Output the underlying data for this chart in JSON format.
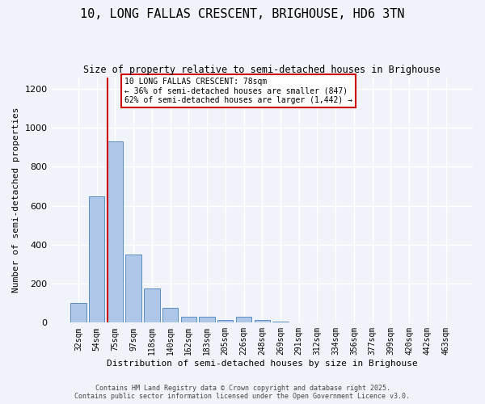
{
  "title_line1": "10, LONG FALLAS CRESCENT, BRIGHOUSE, HD6 3TN",
  "title_line2": "Size of property relative to semi-detached houses in Brighouse",
  "xlabel": "Distribution of semi-detached houses by size in Brighouse",
  "ylabel": "Number of semi-detached properties",
  "categories": [
    "32sqm",
    "54sqm",
    "75sqm",
    "97sqm",
    "118sqm",
    "140sqm",
    "162sqm",
    "183sqm",
    "205sqm",
    "226sqm",
    "248sqm",
    "269sqm",
    "291sqm",
    "312sqm",
    "334sqm",
    "356sqm",
    "377sqm",
    "399sqm",
    "420sqm",
    "442sqm",
    "463sqm"
  ],
  "values": [
    100,
    650,
    930,
    350,
    175,
    75,
    30,
    30,
    15,
    30,
    15,
    5,
    3,
    2,
    1,
    1,
    1,
    1,
    0,
    0,
    0
  ],
  "bar_color": "#aec6e8",
  "bar_edge_color": "#5a8fc0",
  "vline_x": 2,
  "vline_color": "#cc0000",
  "annotation_text": "10 LONG FALLAS CRESCENT: 78sqm\n← 36% of semi-detached houses are smaller (847)\n62% of semi-detached houses are larger (1,442) →",
  "annotation_box_color": "#ffffff",
  "annotation_box_edge_color": "#cc0000",
  "ylim": [
    0,
    1260
  ],
  "yticks": [
    0,
    200,
    400,
    600,
    800,
    1000,
    1200
  ],
  "background_color": "#f0f4fa",
  "grid_color": "#ffffff",
  "footer_line1": "Contains HM Land Registry data © Crown copyright and database right 2025.",
  "footer_line2": "Contains public sector information licensed under the Open Government Licence v3.0."
}
